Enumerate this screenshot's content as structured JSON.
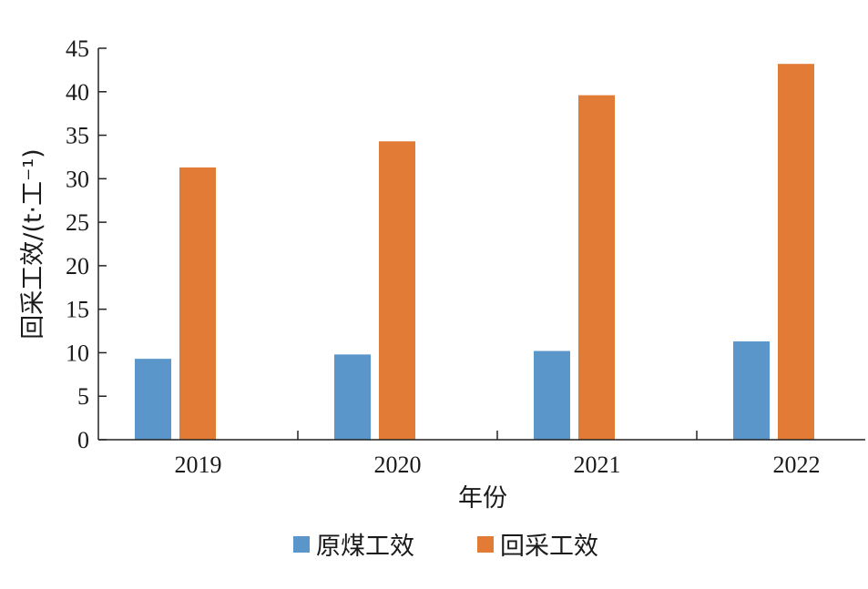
{
  "chart_data": {
    "type": "bar",
    "categories": [
      "2019",
      "2020",
      "2021",
      "2022"
    ],
    "series": [
      {
        "name": "原煤工效",
        "values": [
          9.3,
          9.8,
          10.2,
          11.3
        ],
        "color": "#5b96cb"
      },
      {
        "name": "回采工效",
        "values": [
          31.3,
          34.3,
          39.6,
          43.2
        ],
        "color": "#e27b36"
      }
    ],
    "title": "",
    "xlabel": "年份",
    "ylabel": "回采工效/(t·工⁻¹)",
    "ylim": [
      0,
      45
    ],
    "yticks": [
      0,
      5,
      10,
      15,
      20,
      25,
      30,
      35,
      40,
      45
    ],
    "grid": false,
    "legend_position": "bottom"
  }
}
